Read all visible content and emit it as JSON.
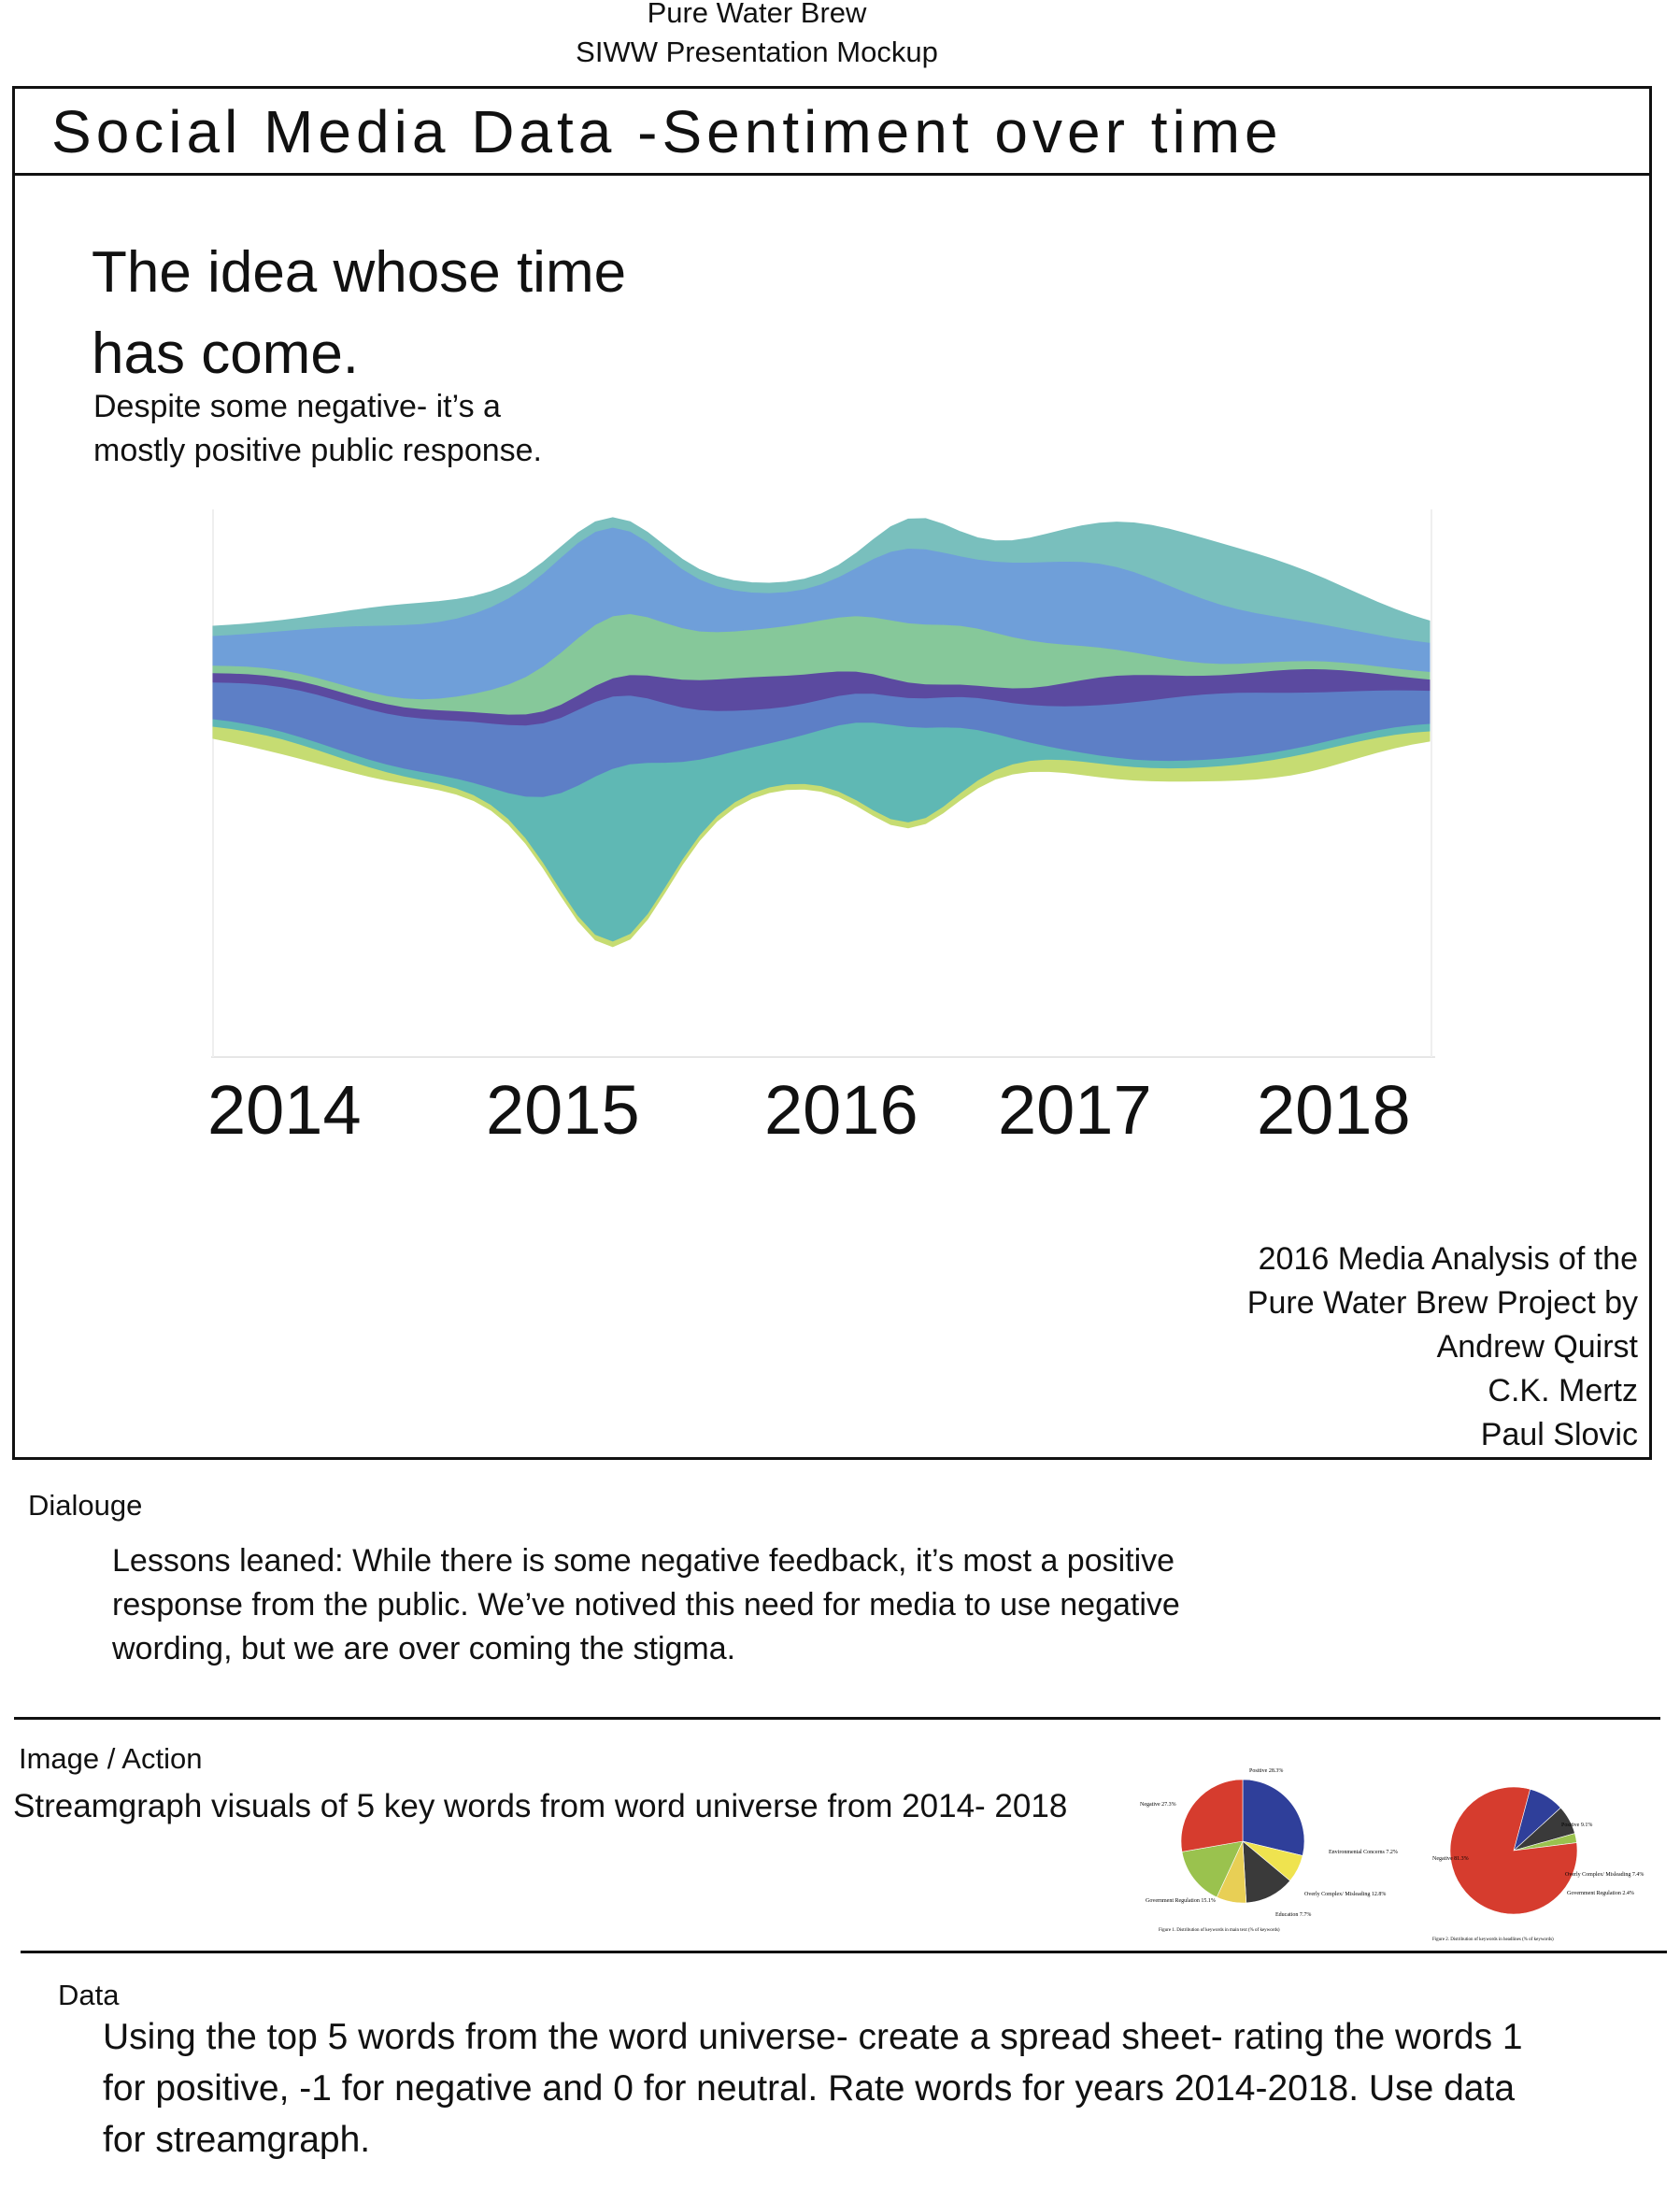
{
  "header": {
    "brand": "Pure Water Brew",
    "subtitle": "SIWW Presentation Mockup"
  },
  "slide": {
    "title": "Social Media Data -Sentiment over time",
    "headline": "The idea whose time has come.",
    "subhead": "Despite some negative- it’s a mostly positive public response.",
    "credits": [
      "2016 Media Analysis of the",
      "Pure Water Brew Project by",
      "Andrew Quirst",
      "C.K. Mertz",
      "Paul Slovic"
    ]
  },
  "chart_data": {
    "type": "area",
    "style": "streamgraph",
    "categories": [
      "2014",
      "2015",
      "2016",
      "2017",
      "2018"
    ],
    "grid": false,
    "colors": [
      "#c6dc72",
      "#5fb8b4",
      "#5d7fc6",
      "#5b4aa0",
      "#86c89a",
      "#6f9fd9",
      "#79bfbd"
    ]
  },
  "dialogue": {
    "label": "Dialouge",
    "text": "Lessons leaned: While there is some negative feedback, it’s most a positive response from the public. We’ve notived this need for media to use negative wording, but we are  over coming the stigma."
  },
  "image_action": {
    "label": "Image / Action",
    "text": "Streamgraph visuals of 5 key words from word universe from 2014- 2018",
    "pie1": {
      "labels": [
        "Positive 28.3%",
        "Negative 27.3%",
        "Environmental Concerns 7.2%",
        "Overly Complex/ Misleading 12.8%",
        "Education 7.7%",
        "Government Regulation 15.1%"
      ],
      "values": [
        28.3,
        7.2,
        12.8,
        7.7,
        15.1,
        27.3
      ],
      "colors": [
        "#2f3f9a",
        "#efe34f",
        "#3a3a3a",
        "#e8cf55",
        "#9ac24e",
        "#d63c2e"
      ],
      "caption": "Figure 1.  Distribution of keywords in main text (% of keywords)"
    },
    "pie2": {
      "labels": [
        "Positive 9.1%",
        "Negative 81.3%",
        "Overly Complex/ Misleading 7.4%",
        "Government Regulation 2.4%"
      ],
      "values": [
        9.1,
        7.4,
        2.4,
        81.3
      ],
      "colors": [
        "#2f3f9a",
        "#3a3a3a",
        "#9ac24e",
        "#d63c2e"
      ],
      "caption": "Figure 2.  Distribution of keywords in headlines (% of keywords)"
    }
  },
  "data_section": {
    "label": "Data",
    "text": "Using the top 5 words from the word universe- create a spread sheet- rating the words 1 for positive, -1 for negative and 0 for neutral. Rate words for years 2014-2018. Use data for streamgraph."
  }
}
